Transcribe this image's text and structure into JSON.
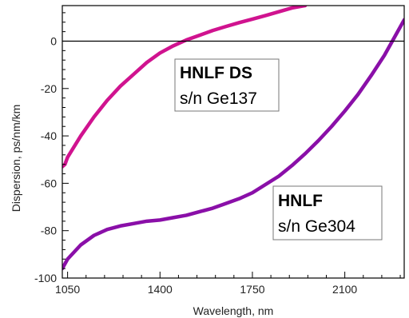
{
  "chart_data": {
    "type": "line",
    "xlabel": "Wavelength, nm",
    "ylabel": "Dispersion, ps/nm/km",
    "xlim": [
      1030,
      2325
    ],
    "ylim": [
      -100,
      15
    ],
    "x_ticks": [
      1050,
      1400,
      1750,
      2100
    ],
    "y_ticks": [
      0,
      -20,
      -40,
      -60,
      -80,
      -100
    ],
    "x_tick_labels": [
      "1050",
      "1400",
      "1750",
      "2100"
    ],
    "y_tick_labels": [
      "0",
      "-20",
      "-40",
      "-60",
      "-80",
      "-100"
    ],
    "zero_line": 0,
    "grid": false,
    "series": [
      {
        "color": "#d0138f",
        "label_lines": [
          "HNLF DS",
          "s/n Ge137"
        ],
        "x": [
          1030,
          1040,
          1050,
          1100,
          1150,
          1200,
          1250,
          1300,
          1350,
          1400,
          1450,
          1500,
          1550,
          1600,
          1650,
          1700,
          1750,
          1800,
          1850,
          1900,
          1950
        ],
        "y": [
          -53,
          -52,
          -49,
          -40,
          -32,
          -25,
          -19,
          -14,
          -9,
          -5,
          -2,
          0.5,
          2.5,
          4.5,
          6.2,
          7.8,
          9.3,
          10.8,
          12.4,
          14,
          15
        ]
      },
      {
        "color": "#8a0fa8",
        "label_lines": [
          "HNLF",
          "s/n Ge304"
        ],
        "x": [
          1030,
          1050,
          1100,
          1150,
          1200,
          1250,
          1300,
          1350,
          1400,
          1450,
          1500,
          1550,
          1600,
          1650,
          1700,
          1750,
          1800,
          1850,
          1900,
          1950,
          2000,
          2050,
          2100,
          2150,
          2200,
          2250,
          2300,
          2325
        ],
        "y": [
          -96,
          -92,
          -86,
          -82,
          -79.5,
          -78,
          -77,
          -76,
          -75.5,
          -74.5,
          -73.5,
          -72,
          -70.5,
          -68.5,
          -66.5,
          -64,
          -60.5,
          -57,
          -52.5,
          -47.5,
          -42,
          -36,
          -29.5,
          -22.5,
          -14.5,
          -6,
          4,
          9
        ]
      }
    ]
  }
}
